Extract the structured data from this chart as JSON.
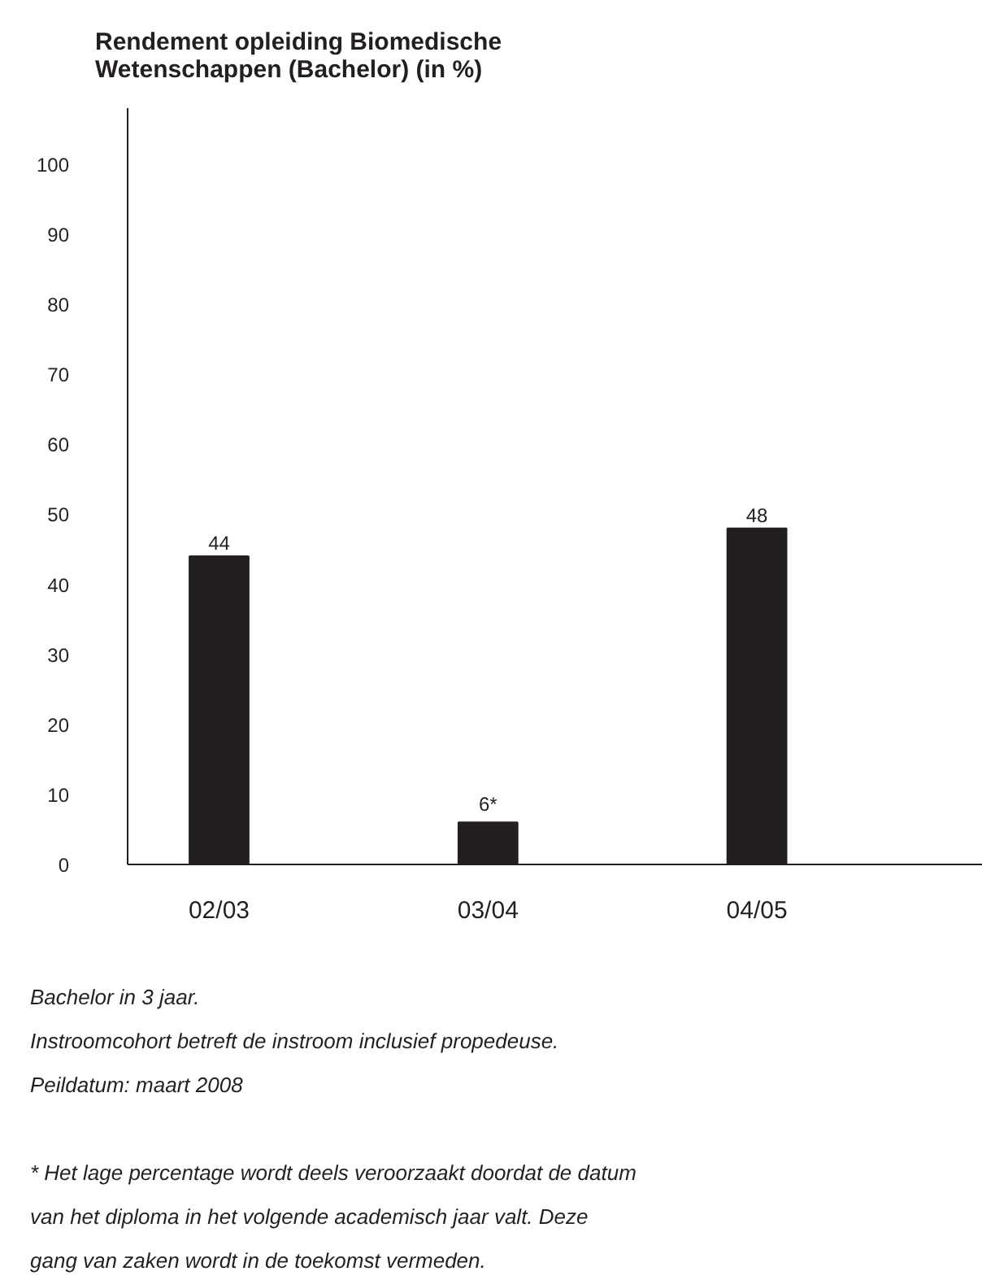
{
  "chart_data": {
    "type": "bar",
    "title": "Rendement opleiding Biomedische Wetenschappen (Bachelor) (in %)",
    "categories": [
      "02/03",
      "03/04",
      "04/05"
    ],
    "values": [
      44,
      6,
      48
    ],
    "value_labels": [
      "44",
      "6*",
      "48"
    ],
    "color": "#231f20",
    "ylim": [
      0,
      108
    ],
    "yticks": [
      0,
      10,
      20,
      30,
      40,
      50,
      60,
      70,
      80,
      90,
      100
    ],
    "grid": false,
    "annotations": [
      "Bachelor in 3 jaar.",
      "Instroomcohort betreft de instroom inclusief propedeuse.",
      "Peildatum: maart 2008",
      "* Het lage percentage wordt deels veroorzaakt doordat de datum van het diploma in het volgende academisch jaar valt. Deze gang van zaken wordt in de toekomst vermeden."
    ]
  }
}
